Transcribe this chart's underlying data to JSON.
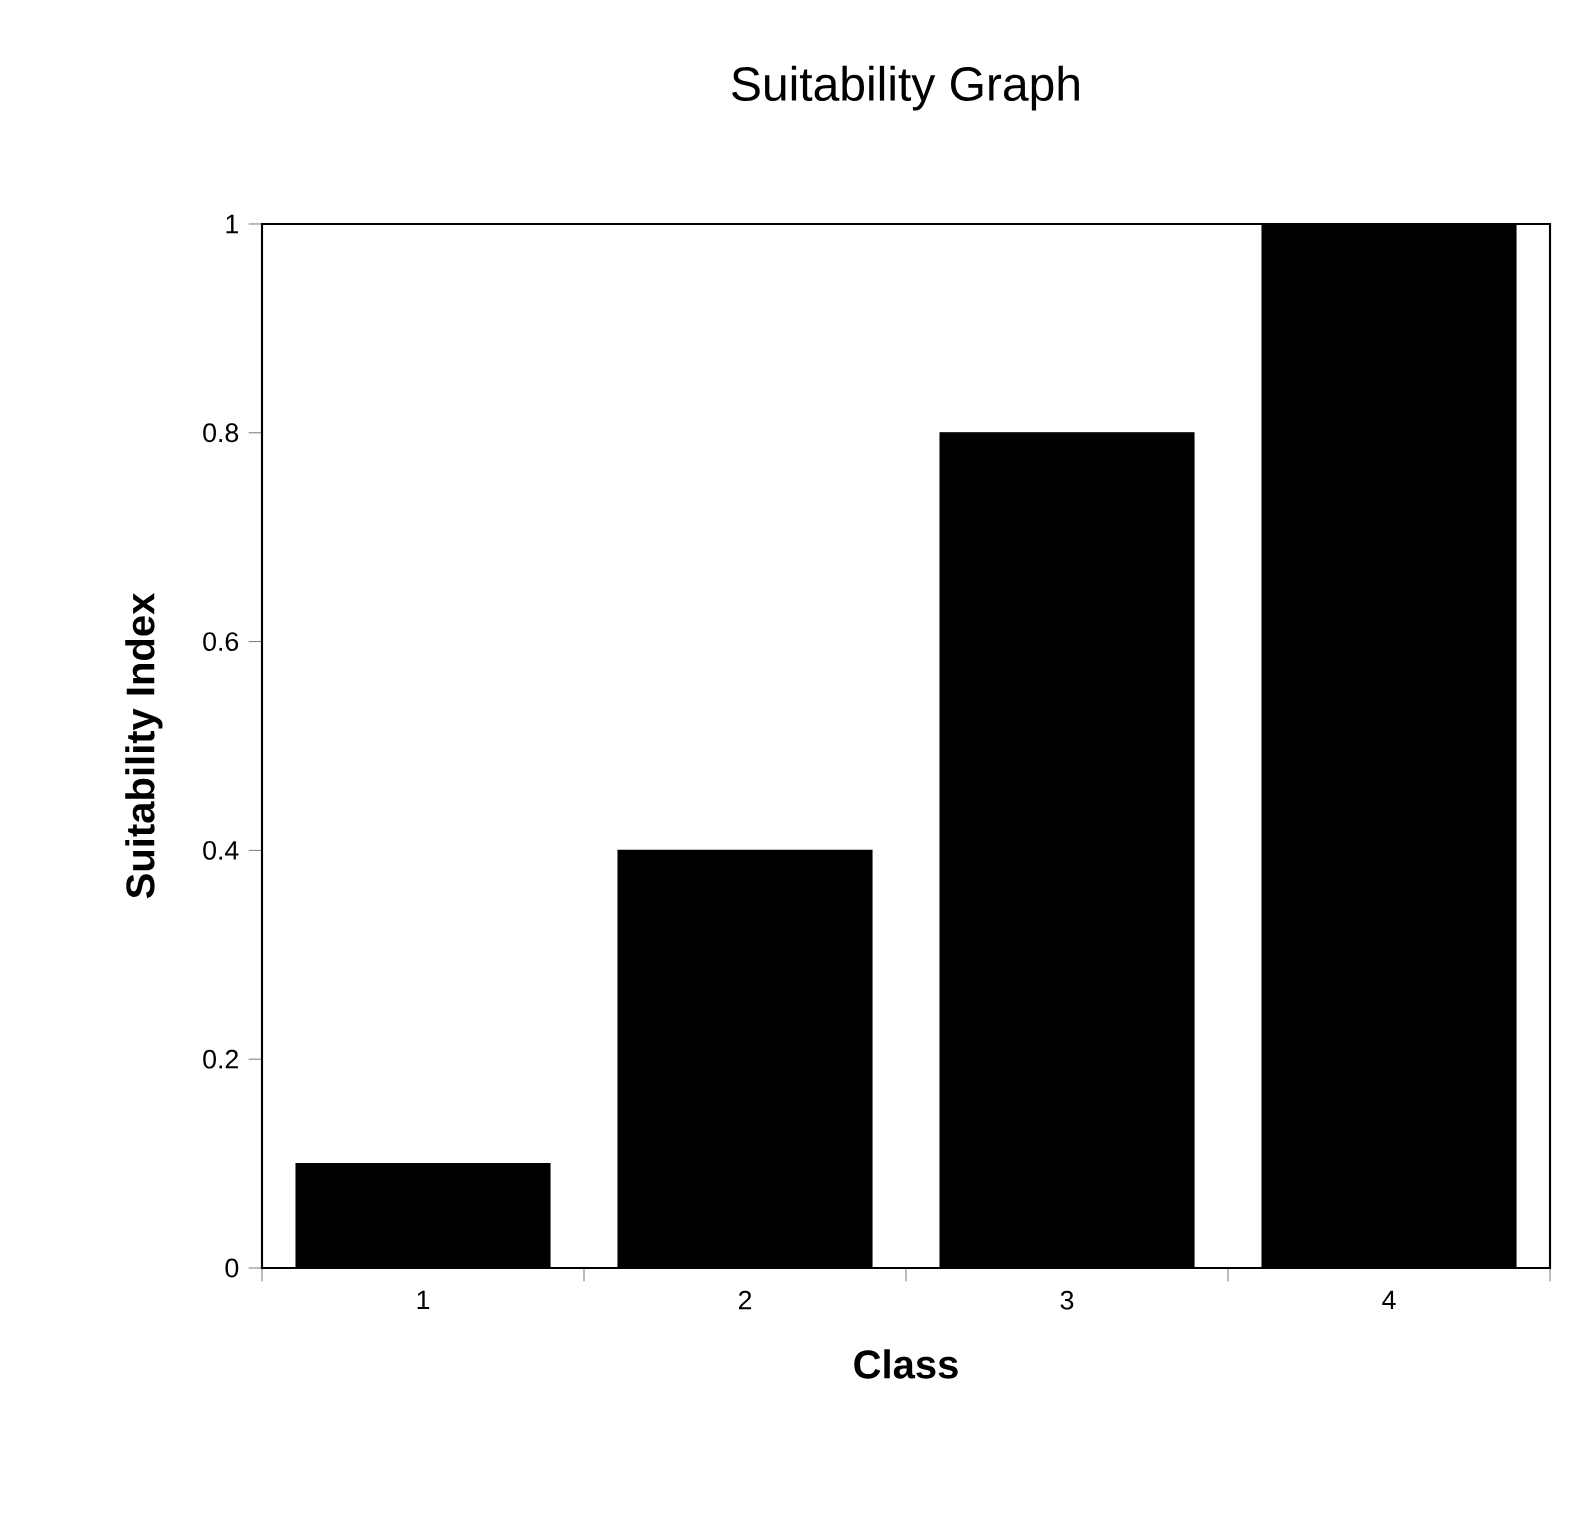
{
  "chart_data": {
    "type": "bar",
    "title": "Suitability Graph",
    "xlabel": "Class",
    "ylabel": "Suitability Index",
    "categories": [
      "1",
      "2",
      "3",
      "4"
    ],
    "values": [
      0.1,
      0.4,
      0.8,
      1.0
    ],
    "color": "#000000",
    "ylim": [
      0,
      1
    ],
    "yticks": [
      0,
      0.2,
      0.4,
      0.6,
      0.8,
      1
    ],
    "grid": false
  }
}
